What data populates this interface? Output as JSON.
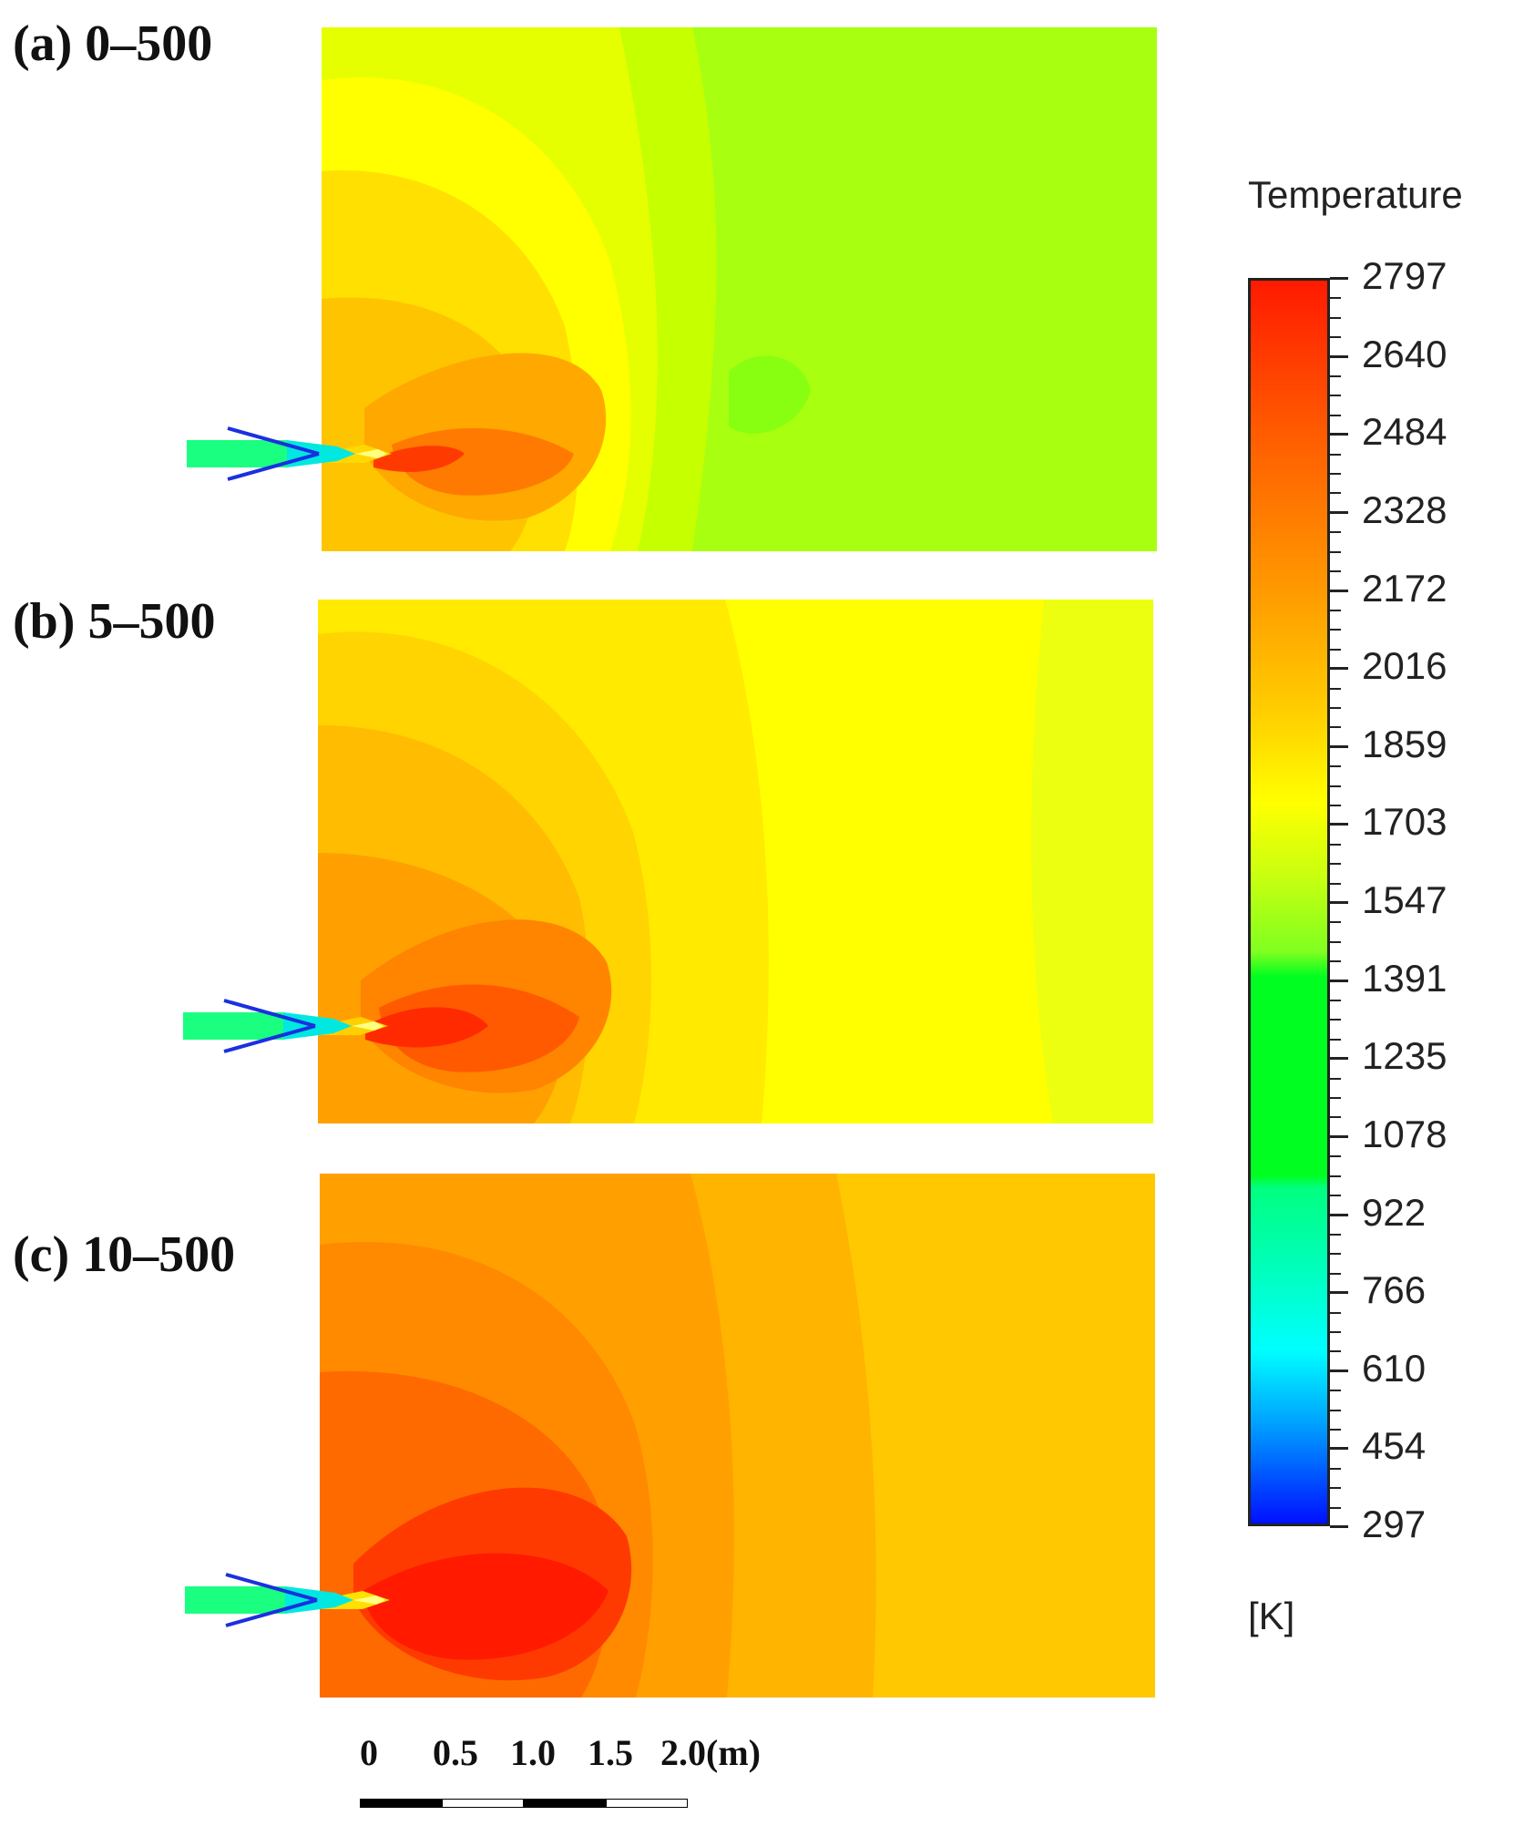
{
  "panels": [
    {
      "label": "(a) 0–500",
      "style": "cool"
    },
    {
      "label": "(b) 5–500",
      "style": "medium"
    },
    {
      "label": "(c) 10–500",
      "style": "hot"
    }
  ],
  "legend": {
    "title": "Temperature",
    "unit": "[K]",
    "ticks": [
      "2797",
      "2640",
      "2484",
      "2328",
      "2172",
      "2016",
      "1859",
      "1703",
      "1547",
      "1391",
      "1235",
      "1078",
      "922",
      "766",
      "610",
      "454",
      "297"
    ],
    "colors": {
      "red": "#ff1a00",
      "orange": "#ff9a00",
      "yellow": "#ffff00",
      "green": "#00ff20",
      "cyan": "#00ffff",
      "blue": "#0010ff"
    }
  },
  "scale_bar": {
    "labels": [
      "0",
      "0.5",
      "1.0",
      "1.5",
      "2.0(m)"
    ]
  }
}
